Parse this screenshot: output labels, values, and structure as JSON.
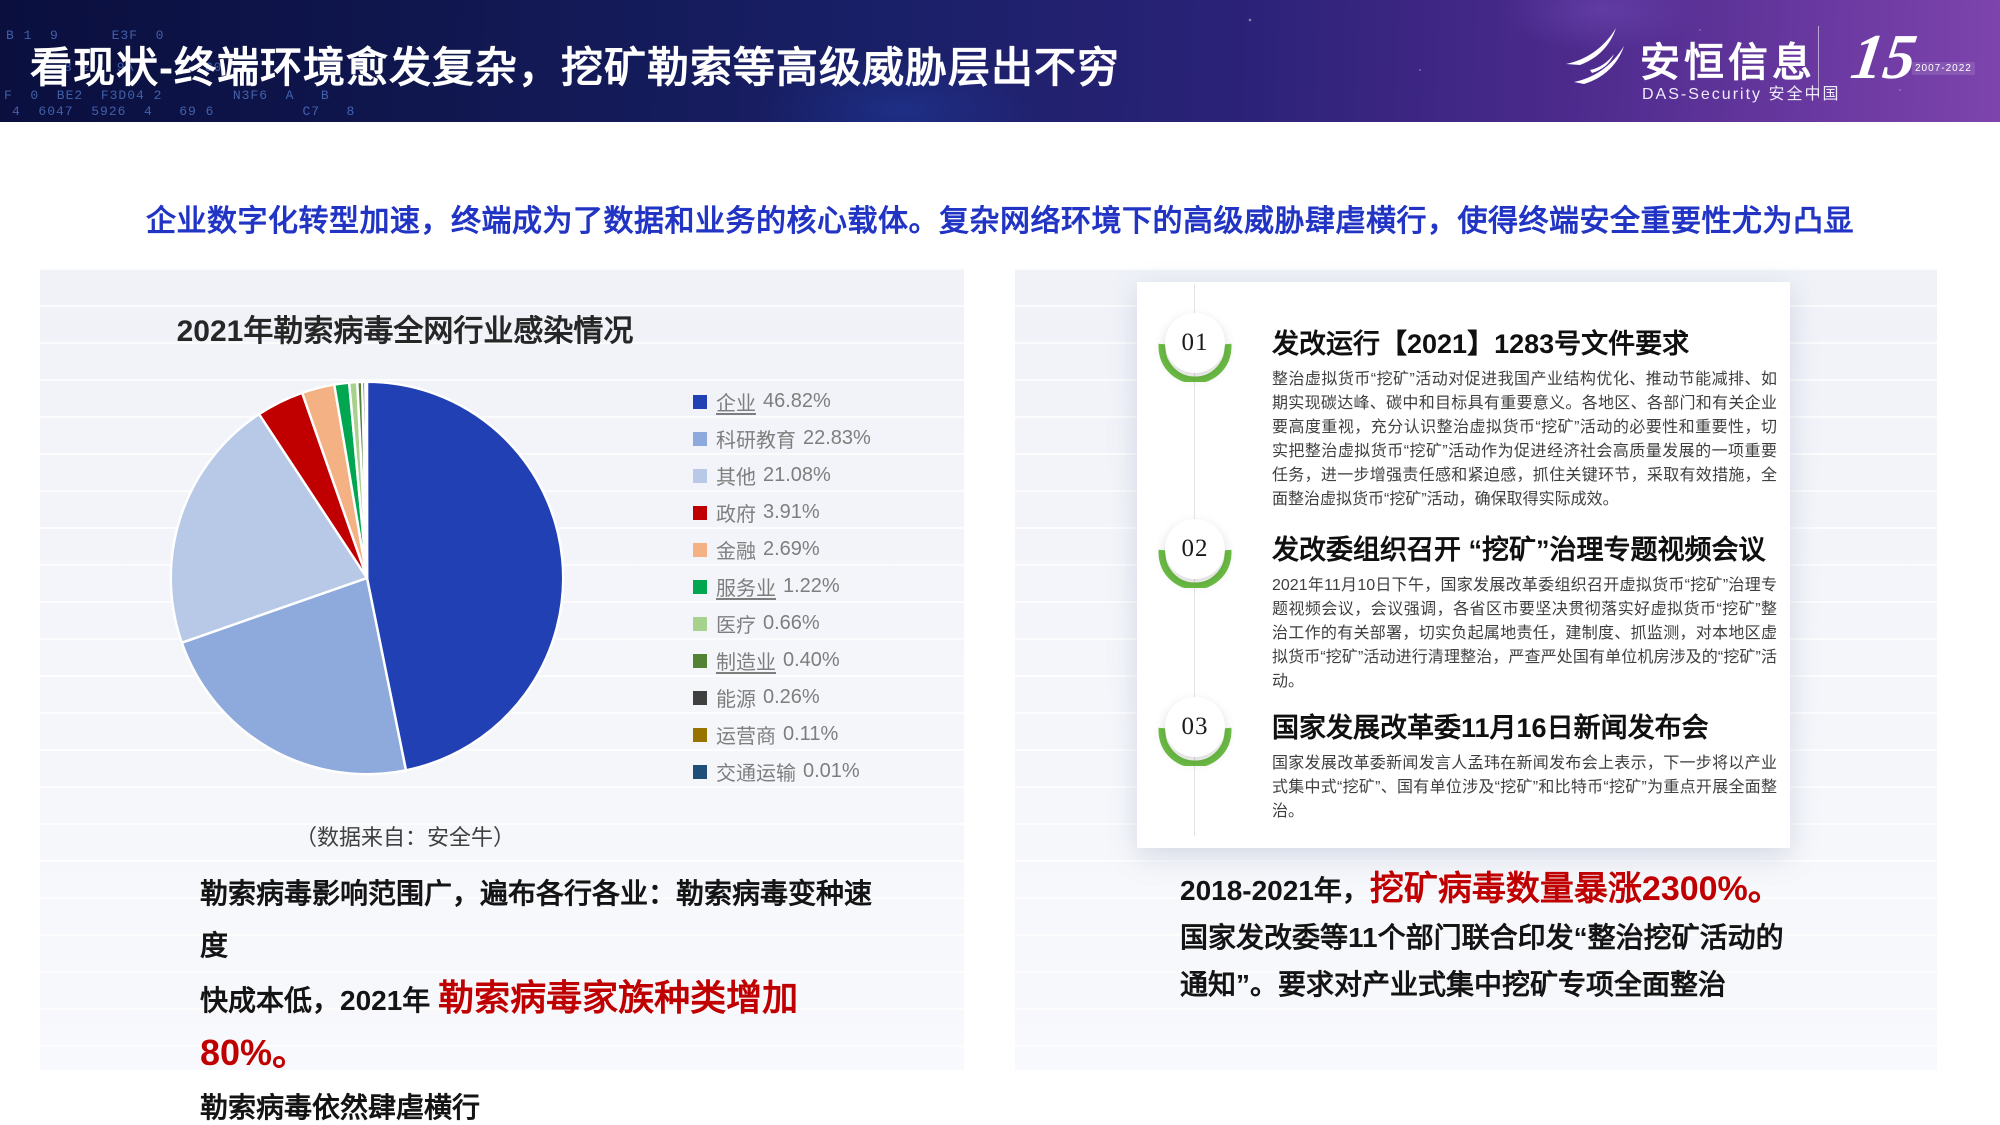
{
  "header": {
    "title": "看现状-终端环境愈发复杂，挖矿勒索等高级威胁层出不穷",
    "code_lines": [
      "B 1  9      E3F  0",
      "8 2   9A        C0",
      "F  0  BE2  F3D04 2        N3F6  A   B",
      "4  6047  5926  4   69 6          C7   8"
    ],
    "logo": {
      "name_cn": "安恒信息",
      "name_en": "DAS-Security 安全中国",
      "anniversary_number": "15",
      "anniversary_years": "2007-2022"
    }
  },
  "subtitle": "企业数字化转型加速，终端成为了数据和业务的核心载体。复杂网络环境下的高级威胁肆虐横行，使得终端安全重要性尤为凸显",
  "chart_data": {
    "type": "pie",
    "title": "2021年勒索病毒全网行业感染情况",
    "source_note": "（数据来自：安全牛）",
    "start_angle_deg": 0,
    "direction": "clockwise",
    "legend_position": "right",
    "items": [
      {
        "label": "企业",
        "value": 46.82,
        "pct": "46.82%",
        "color": "#2140b4"
      },
      {
        "label": "科研教育",
        "value": 22.83,
        "pct": "22.83%",
        "color": "#8ea9db"
      },
      {
        "label": "其他",
        "value": 21.08,
        "pct": "21.08%",
        "color": "#b8c9e8"
      },
      {
        "label": "政府",
        "value": 3.91,
        "pct": "3.91%",
        "color": "#c00000"
      },
      {
        "label": "金融",
        "value": 2.69,
        "pct": "2.69%",
        "color": "#f4b183"
      },
      {
        "label": "服务业",
        "value": 1.22,
        "pct": "1.22%",
        "color": "#00a650"
      },
      {
        "label": "医疗",
        "value": 0.66,
        "pct": "0.66%",
        "color": "#a9d18e"
      },
      {
        "label": "制造业",
        "value": 0.4,
        "pct": "0.40%",
        "color": "#548235"
      },
      {
        "label": "能源",
        "value": 0.26,
        "pct": "0.26%",
        "color": "#404040"
      },
      {
        "label": "运营商",
        "value": 0.11,
        "pct": "0.11%",
        "color": "#997300"
      },
      {
        "label": "交通运输",
        "value": 0.01,
        "pct": "0.01%",
        "color": "#1f4e79"
      }
    ]
  },
  "left_summary": {
    "line1": "勒索病毒影响范围广，遍布各行各业：勒索病毒变种速度",
    "line2_prefix": "快成本低，2021年 ",
    "line2_highlight": "勒索病毒家族种类增加80%。",
    "line3": "勒索病毒依然肆虐横行"
  },
  "timeline": {
    "items": [
      {
        "number": "01",
        "title": "发改运行【2021】1283号文件要求",
        "body": "整治虚拟货币“挖矿”活动对促进我国产业结构优化、推动节能减排、如期实现碳达峰、碳中和目标具有重要意义。各地区、各部门和有关企业要高度重视，充分认识整治虚拟货币“挖矿”活动的必要性和重要性，切实把整治虚拟货币“挖矿”活动作为促进经济社会高质量发展的一项重要任务，进一步增强责任感和紧迫感，抓住关键环节，采取有效措施，全面整治虚拟货币“挖矿”活动，确保取得实际成效。"
      },
      {
        "number": "02",
        "title": "发改委组织召开 “挖矿”治理专题视频会议",
        "body": "2021年11月10日下午，国家发展改革委组织召开虚拟货币“挖矿”治理专题视频会议，会议强调，各省区市要坚决贯彻落实好虚拟货币“挖矿”整治工作的有关部署，切实负起属地责任，建制度、抓监测，对本地区虚拟货币“挖矿”活动进行清理整治，严查严处国有单位机房涉及的“挖矿”活动。"
      },
      {
        "number": "03",
        "title": "国家发展改革委11月16日新闻发布会",
        "body": "国家发展改革委新闻发言人孟玮在新闻发布会上表示，下一步将以产业式集中式“挖矿”、国有单位涉及“挖矿”和比特币“挖矿”为重点开展全面整治。"
      }
    ]
  },
  "right_summary": {
    "line1_prefix": "2018-2021年，",
    "line1_highlight": "挖矿病毒数量暴涨2300%。",
    "line2": "国家发改委等11个部门联合印发“整治挖矿活动的",
    "line3": "通知”。要求对产业式集中挖矿专项全面整治"
  },
  "colors": {
    "subtitle_blue": "#2134c4",
    "highlight_red": "#c00000",
    "timeline_green": "#6cbe45"
  }
}
